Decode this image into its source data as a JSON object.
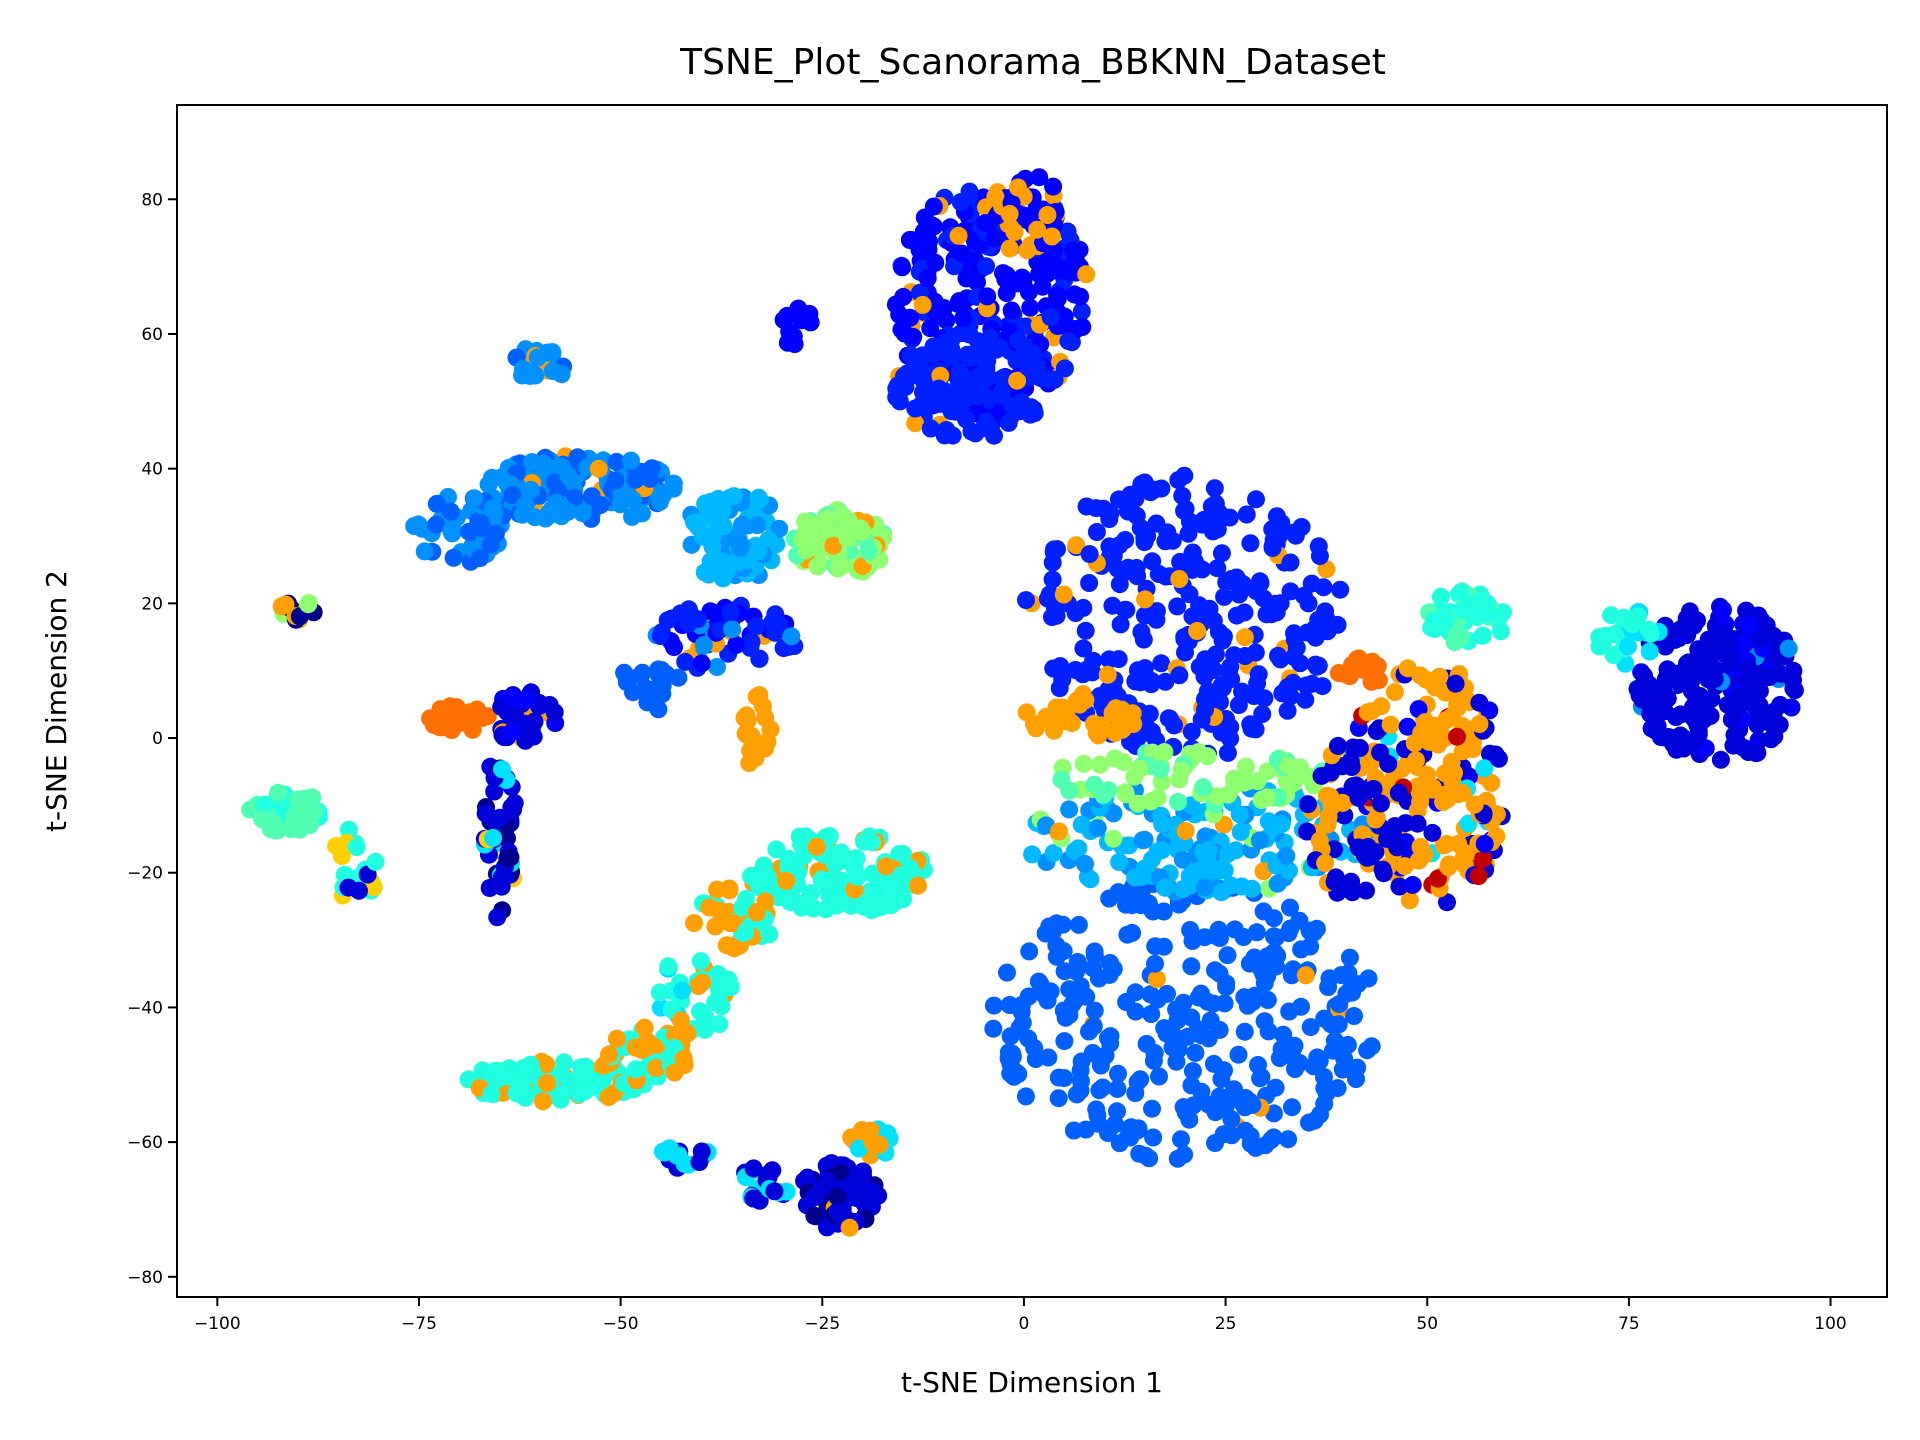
{
  "chart_data": {
    "type": "scatter",
    "title": "TSNE_Plot_Scanorama_BBKNN_Dataset",
    "xlabel": "t-SNE Dimension 1",
    "ylabel": "t-SNE Dimension 2",
    "xlim": [
      -105,
      107
    ],
    "ylim": [
      -83,
      94
    ],
    "xticks": [
      -100,
      -75,
      -50,
      -25,
      0,
      25,
      50,
      75,
      100
    ],
    "yticks": [
      -80,
      -60,
      -40,
      -20,
      0,
      20,
      40,
      60,
      80
    ],
    "xtick_labels": [
      "−100",
      "−75",
      "−50",
      "−25",
      "0",
      "25",
      "50",
      "75",
      "100"
    ],
    "ytick_labels": [
      "−80",
      "−60",
      "−40",
      "−20",
      "0",
      "20",
      "40",
      "60",
      "80"
    ],
    "grid": false,
    "legend": "none",
    "colormap": "jet",
    "colors": {
      "c0": "#00008f",
      "c1": "#0000d8",
      "c2": "#0000ff",
      "c3": "#0020ff",
      "c4": "#0060ff",
      "c5": "#0090ff",
      "c6": "#00b8ff",
      "c7": "#00e0ff",
      "c8": "#20ffe0",
      "c9": "#50ffb0",
      "c10": "#90ff70",
      "c11": "#ffd000",
      "c12": "#ffa000",
      "c13": "#ff7000",
      "c14": "#ff3000",
      "c15": "#c00000"
    },
    "clusters": [
      {
        "cx": 20,
        "cy": 18,
        "rx": 20,
        "ry": 21,
        "n": 300,
        "color": "c3",
        "sprinkle": [
          [
            "c12",
            0.06
          ]
        ]
      },
      {
        "cx": 20,
        "cy": -42,
        "rx": 24,
        "ry": 21,
        "n": 320,
        "color": "c4",
        "sprinkle": [
          [
            "c12",
            0.02
          ]
        ]
      },
      {
        "cx": 22,
        "cy": -15,
        "rx": 22,
        "ry": 8,
        "n": 150,
        "color": "c6",
        "sprinkle": [
          [
            "c5",
            0.25
          ],
          [
            "c10",
            0.1
          ],
          [
            "c12",
            0.05
          ]
        ]
      },
      {
        "cx": 20,
        "cy": -6,
        "rx": 18,
        "ry": 4,
        "n": 70,
        "color": "c10",
        "sprinkle": [
          [
            "c9",
            0.3
          ]
        ]
      },
      {
        "cx": 7,
        "cy": 3,
        "rx": 7,
        "ry": 3,
        "n": 35,
        "color": "c12"
      },
      {
        "cx": 50,
        "cy": -7,
        "rx": 10,
        "ry": 18,
        "n": 190,
        "color": "c12",
        "sprinkle": [
          [
            "c1",
            0.2
          ],
          [
            "c2",
            0.1
          ],
          [
            "c15",
            0.05
          ],
          [
            "c7",
            0.05
          ]
        ]
      },
      {
        "cx": 41,
        "cy": -12,
        "rx": 6,
        "ry": 12,
        "n": 60,
        "color": "c1",
        "sprinkle": [
          [
            "c12",
            0.2
          ]
        ]
      },
      {
        "cx": 55,
        "cy": 18,
        "rx": 5,
        "ry": 4,
        "n": 40,
        "color": "c8",
        "sprinkle": [
          [
            "c9",
            0.2
          ]
        ]
      },
      {
        "cx": 42,
        "cy": 10,
        "rx": 3,
        "ry": 2,
        "n": 12,
        "color": "c13"
      },
      {
        "cx": 86,
        "cy": 8,
        "rx": 10,
        "ry": 12,
        "n": 200,
        "color": "c1",
        "sprinkle": [
          [
            "c2",
            0.15
          ],
          [
            "c5",
            0.05
          ]
        ]
      },
      {
        "cx": 75,
        "cy": 15,
        "rx": 4,
        "ry": 4,
        "n": 25,
        "color": "c8",
        "sprinkle": [
          [
            "c7",
            0.3
          ]
        ]
      },
      {
        "cx": -4,
        "cy": 65,
        "rx": 12,
        "ry": 18,
        "n": 260,
        "color": "c2",
        "sprinkle": [
          [
            "c3",
            0.25
          ],
          [
            "c12",
            0.06
          ]
        ]
      },
      {
        "cx": -6,
        "cy": 52,
        "rx": 10,
        "ry": 8,
        "n": 100,
        "color": "c3",
        "sprinkle": [
          [
            "c12",
            0.03
          ]
        ]
      },
      {
        "cx": 0,
        "cy": 78,
        "rx": 5,
        "ry": 6,
        "n": 40,
        "color": "c12",
        "sprinkle": [
          [
            "c2",
            0.4
          ]
        ]
      },
      {
        "cx": -28,
        "cy": 61,
        "rx": 2,
        "ry": 3,
        "n": 10,
        "color": "c2"
      },
      {
        "cx": -55,
        "cy": 37,
        "rx": 12,
        "ry": 5,
        "n": 150,
        "color": "c5",
        "sprinkle": [
          [
            "c4",
            0.3
          ],
          [
            "c12",
            0.05
          ]
        ]
      },
      {
        "cx": -70,
        "cy": 31,
        "rx": 6,
        "ry": 5,
        "n": 50,
        "color": "c5",
        "sprinkle": [
          [
            "c4",
            0.3
          ]
        ]
      },
      {
        "cx": -61,
        "cy": 55,
        "rx": 4,
        "ry": 3,
        "n": 25,
        "color": "c5",
        "sprinkle": [
          [
            "c4",
            0.3
          ],
          [
            "c12",
            0.1
          ]
        ]
      },
      {
        "cx": -36,
        "cy": 30,
        "rx": 6,
        "ry": 7,
        "n": 90,
        "color": "c6",
        "sprinkle": [
          [
            "c5",
            0.2
          ]
        ]
      },
      {
        "cx": -23,
        "cy": 29,
        "rx": 6,
        "ry": 5,
        "n": 80,
        "color": "c10",
        "sprinkle": [
          [
            "c12",
            0.1
          ],
          [
            "c9",
            0.2
          ]
        ]
      },
      {
        "cx": -37,
        "cy": 15,
        "rx": 9,
        "ry": 5,
        "n": 70,
        "color": "c3",
        "sprinkle": [
          [
            "c2",
            0.3
          ],
          [
            "c5",
            0.15
          ],
          [
            "c12",
            0.05
          ]
        ]
      },
      {
        "cx": -46,
        "cy": 8,
        "rx": 4,
        "ry": 4,
        "n": 20,
        "color": "c4"
      },
      {
        "cx": -70,
        "cy": 3,
        "rx": 4,
        "ry": 2,
        "n": 30,
        "color": "c13"
      },
      {
        "cx": -62,
        "cy": 3,
        "rx": 4,
        "ry": 4,
        "n": 40,
        "color": "c1",
        "sprinkle": [
          [
            "c2",
            0.3
          ],
          [
            "c12",
            0.1
          ]
        ]
      },
      {
        "cx": -65,
        "cy": -14,
        "rx": 2,
        "ry": 13,
        "n": 50,
        "color": "c1",
        "sprinkle": [
          [
            "c0",
            0.2
          ],
          [
            "c7",
            0.15
          ],
          [
            "c11",
            0.08
          ]
        ]
      },
      {
        "cx": -91,
        "cy": -11,
        "rx": 5,
        "ry": 3,
        "n": 40,
        "color": "c9",
        "sprinkle": [
          [
            "c8",
            0.2
          ]
        ]
      },
      {
        "cx": -83,
        "cy": -19,
        "rx": 3,
        "ry": 6,
        "n": 20,
        "color": "c8",
        "sprinkle": [
          [
            "c11",
            0.3
          ],
          [
            "c1",
            0.2
          ]
        ]
      },
      {
        "cx": -90,
        "cy": 19,
        "rx": 2.5,
        "ry": 1.5,
        "n": 14,
        "color": "c0",
        "sprinkle": [
          [
            "c10",
            0.3
          ],
          [
            "c12",
            0.2
          ]
        ]
      },
      {
        "cx": -33,
        "cy": 1,
        "rx": 2,
        "ry": 6,
        "n": 18,
        "color": "c12"
      },
      {
        "cx": -23,
        "cy": -20,
        "rx": 11,
        "ry": 6,
        "n": 130,
        "color": "c8",
        "sprinkle": [
          [
            "c12",
            0.2
          ]
        ]
      },
      {
        "cx": -36,
        "cy": -27,
        "rx": 5,
        "ry": 5,
        "n": 35,
        "color": "c12",
        "sprinkle": [
          [
            "c8",
            0.3
          ]
        ]
      },
      {
        "cx": -41,
        "cy": -38,
        "rx": 5,
        "ry": 6,
        "n": 35,
        "color": "c8",
        "sprinkle": [
          [
            "c12",
            0.3
          ],
          [
            "c7",
            0.1
          ]
        ]
      },
      {
        "cx": -58,
        "cy": -51,
        "rx": 11,
        "ry": 3,
        "n": 90,
        "color": "c8",
        "sprinkle": [
          [
            "c12",
            0.15
          ]
        ]
      },
      {
        "cx": -47,
        "cy": -47,
        "rx": 6,
        "ry": 4,
        "n": 40,
        "color": "c12",
        "sprinkle": [
          [
            "c8",
            0.4
          ]
        ]
      },
      {
        "cx": -23,
        "cy": -68,
        "rx": 5,
        "ry": 5,
        "n": 80,
        "color": "c1",
        "sprinkle": [
          [
            "c0",
            0.15
          ],
          [
            "c7",
            0.1
          ],
          [
            "c12",
            0.08
          ]
        ]
      },
      {
        "cx": -32,
        "cy": -66,
        "rx": 3,
        "ry": 3,
        "n": 20,
        "color": "c1",
        "sprinkle": [
          [
            "c7",
            0.3
          ]
        ]
      },
      {
        "cx": -42,
        "cy": -62,
        "rx": 3,
        "ry": 2,
        "n": 20,
        "color": "c1",
        "sprinkle": [
          [
            "c7",
            0.4
          ]
        ]
      },
      {
        "cx": -19,
        "cy": -60,
        "rx": 3,
        "ry": 2,
        "n": 14,
        "color": "c12",
        "sprinkle": [
          [
            "c7",
            0.3
          ]
        ]
      }
    ]
  }
}
